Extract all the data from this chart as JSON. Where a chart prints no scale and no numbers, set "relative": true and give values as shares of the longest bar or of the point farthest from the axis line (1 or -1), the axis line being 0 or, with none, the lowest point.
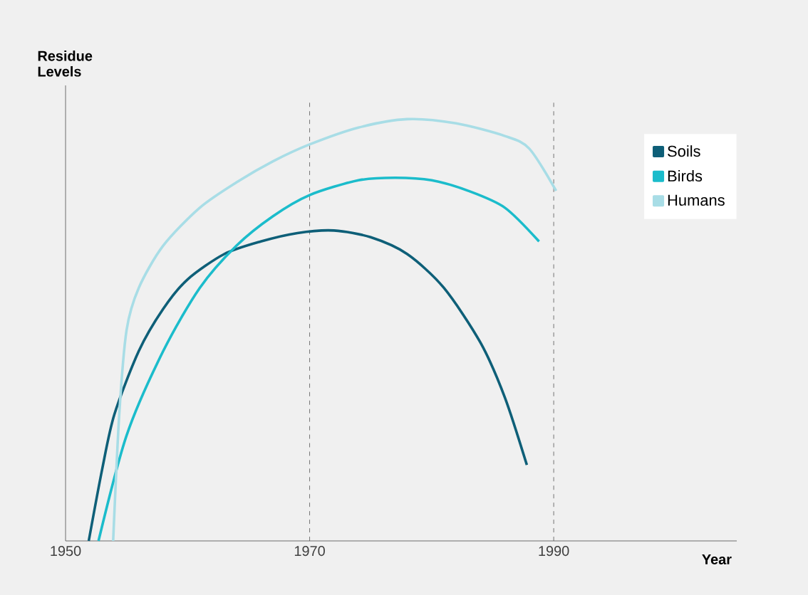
{
  "chart_data": {
    "type": "line",
    "relative": true,
    "ylabel": "Residue Levels",
    "xlabel": "Year",
    "xlim": [
      1950,
      2005
    ],
    "xticks": [
      1950,
      1970,
      1990
    ],
    "legend": "right",
    "grid": false,
    "line_style": "solid",
    "marker": "none",
    "ref_lines": [
      {
        "axis": "x",
        "value": 1970,
        "color": "#555555",
        "line_style": "dashed"
      },
      {
        "axis": "x",
        "value": 1990,
        "color": "#555555",
        "line_style": "dashed"
      }
    ],
    "series": [
      {
        "name": "Soils",
        "color": "#0e5f78",
        "x": [
          1951.9,
          1953,
          1954,
          1956,
          1958,
          1960,
          1963,
          1966,
          1969,
          1972,
          1975,
          1978,
          1981,
          1984,
          1986,
          1987.8
        ],
        "values": [
          0,
          0.17,
          0.3,
          0.45,
          0.55,
          0.62,
          0.68,
          0.71,
          0.73,
          0.736,
          0.72,
          0.68,
          0.6,
          0.47,
          0.34,
          0.18
        ]
      },
      {
        "name": "Birds",
        "color": "#1bbccb",
        "x": [
          1952.7,
          1955,
          1958,
          1961,
          1964,
          1967,
          1970,
          1974,
          1977,
          1980,
          1983,
          1986,
          1988.8
        ],
        "values": [
          0,
          0.25,
          0.45,
          0.6,
          0.7,
          0.77,
          0.82,
          0.855,
          0.861,
          0.855,
          0.83,
          0.79,
          0.71
        ]
      },
      {
        "name": "Humans",
        "color": "#a8dde6",
        "x": [
          1953.9,
          1954.4,
          1955,
          1956,
          1958,
          1961,
          1964,
          1967,
          1970,
          1974,
          1978,
          1982,
          1986,
          1988,
          1990.2
        ],
        "values": [
          0,
          0.3,
          0.5,
          0.6,
          0.7,
          0.79,
          0.85,
          0.9,
          0.94,
          0.98,
          1.0,
          0.99,
          0.96,
          0.93,
          0.83
        ]
      }
    ]
  }
}
